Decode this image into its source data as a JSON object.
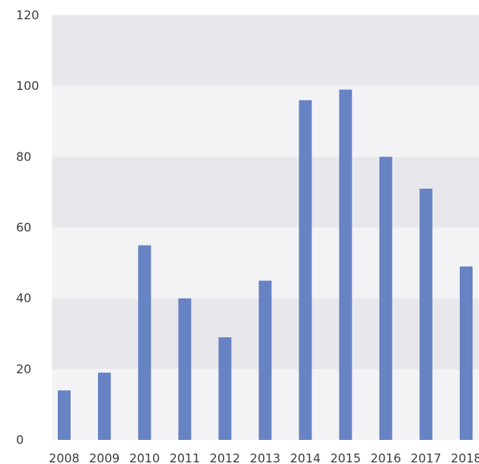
{
  "chart_data": {
    "type": "bar",
    "categories": [
      "2008",
      "2009",
      "2010",
      "2011",
      "2012",
      "2013",
      "2014",
      "2015",
      "2016",
      "2017",
      "2018"
    ],
    "values": [
      14,
      19,
      55,
      40,
      29,
      45,
      96,
      99,
      80,
      71,
      49
    ],
    "ylim": [
      0,
      120
    ],
    "yticks": [
      "0",
      "20",
      "40",
      "60",
      "80",
      "100",
      "120"
    ],
    "grid": "alternating horizontal bands",
    "legend": "none"
  },
  "colors": {
    "bar": "#6783c4",
    "band_dark": "#e8e8ec",
    "band_light": "#f3f3f5",
    "text": "#3b3b3b"
  }
}
